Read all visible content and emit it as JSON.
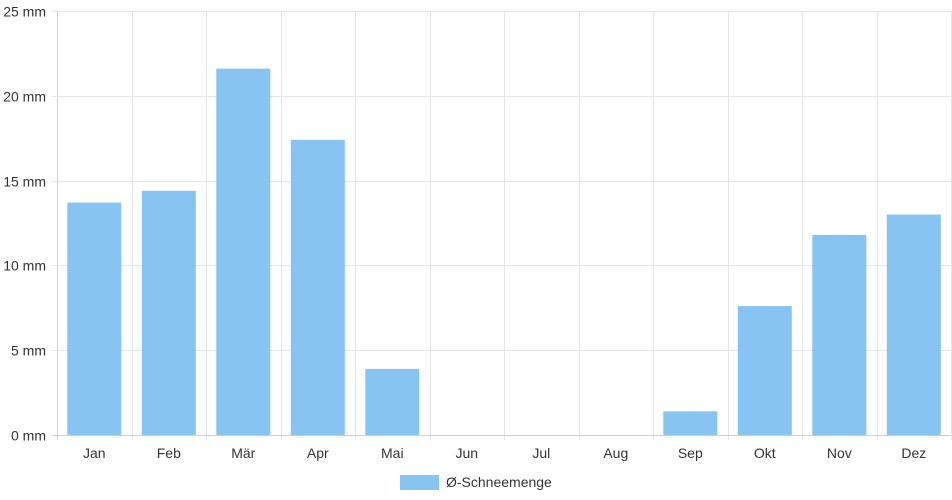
{
  "chart_data": {
    "type": "bar",
    "categories": [
      "Jan",
      "Feb",
      "Mär",
      "Apr",
      "Mai",
      "Jun",
      "Jul",
      "Aug",
      "Sep",
      "Okt",
      "Nov",
      "Dez"
    ],
    "series": [
      {
        "name": "Ø-Schneemenge",
        "values": [
          13.7,
          14.4,
          21.6,
          17.4,
          3.9,
          0,
          0,
          0,
          1.4,
          7.6,
          11.8,
          13.0
        ],
        "color": "#88c4f1"
      }
    ],
    "y_ticks": [
      "0 mm",
      "5 mm",
      "10 mm",
      "15 mm",
      "20 mm",
      "25 mm"
    ],
    "ylim": [
      0,
      25
    ],
    "y_unit": "mm",
    "grid": true,
    "legend_position": "bottom-center",
    "title": "",
    "xlabel": "",
    "ylabel": ""
  }
}
